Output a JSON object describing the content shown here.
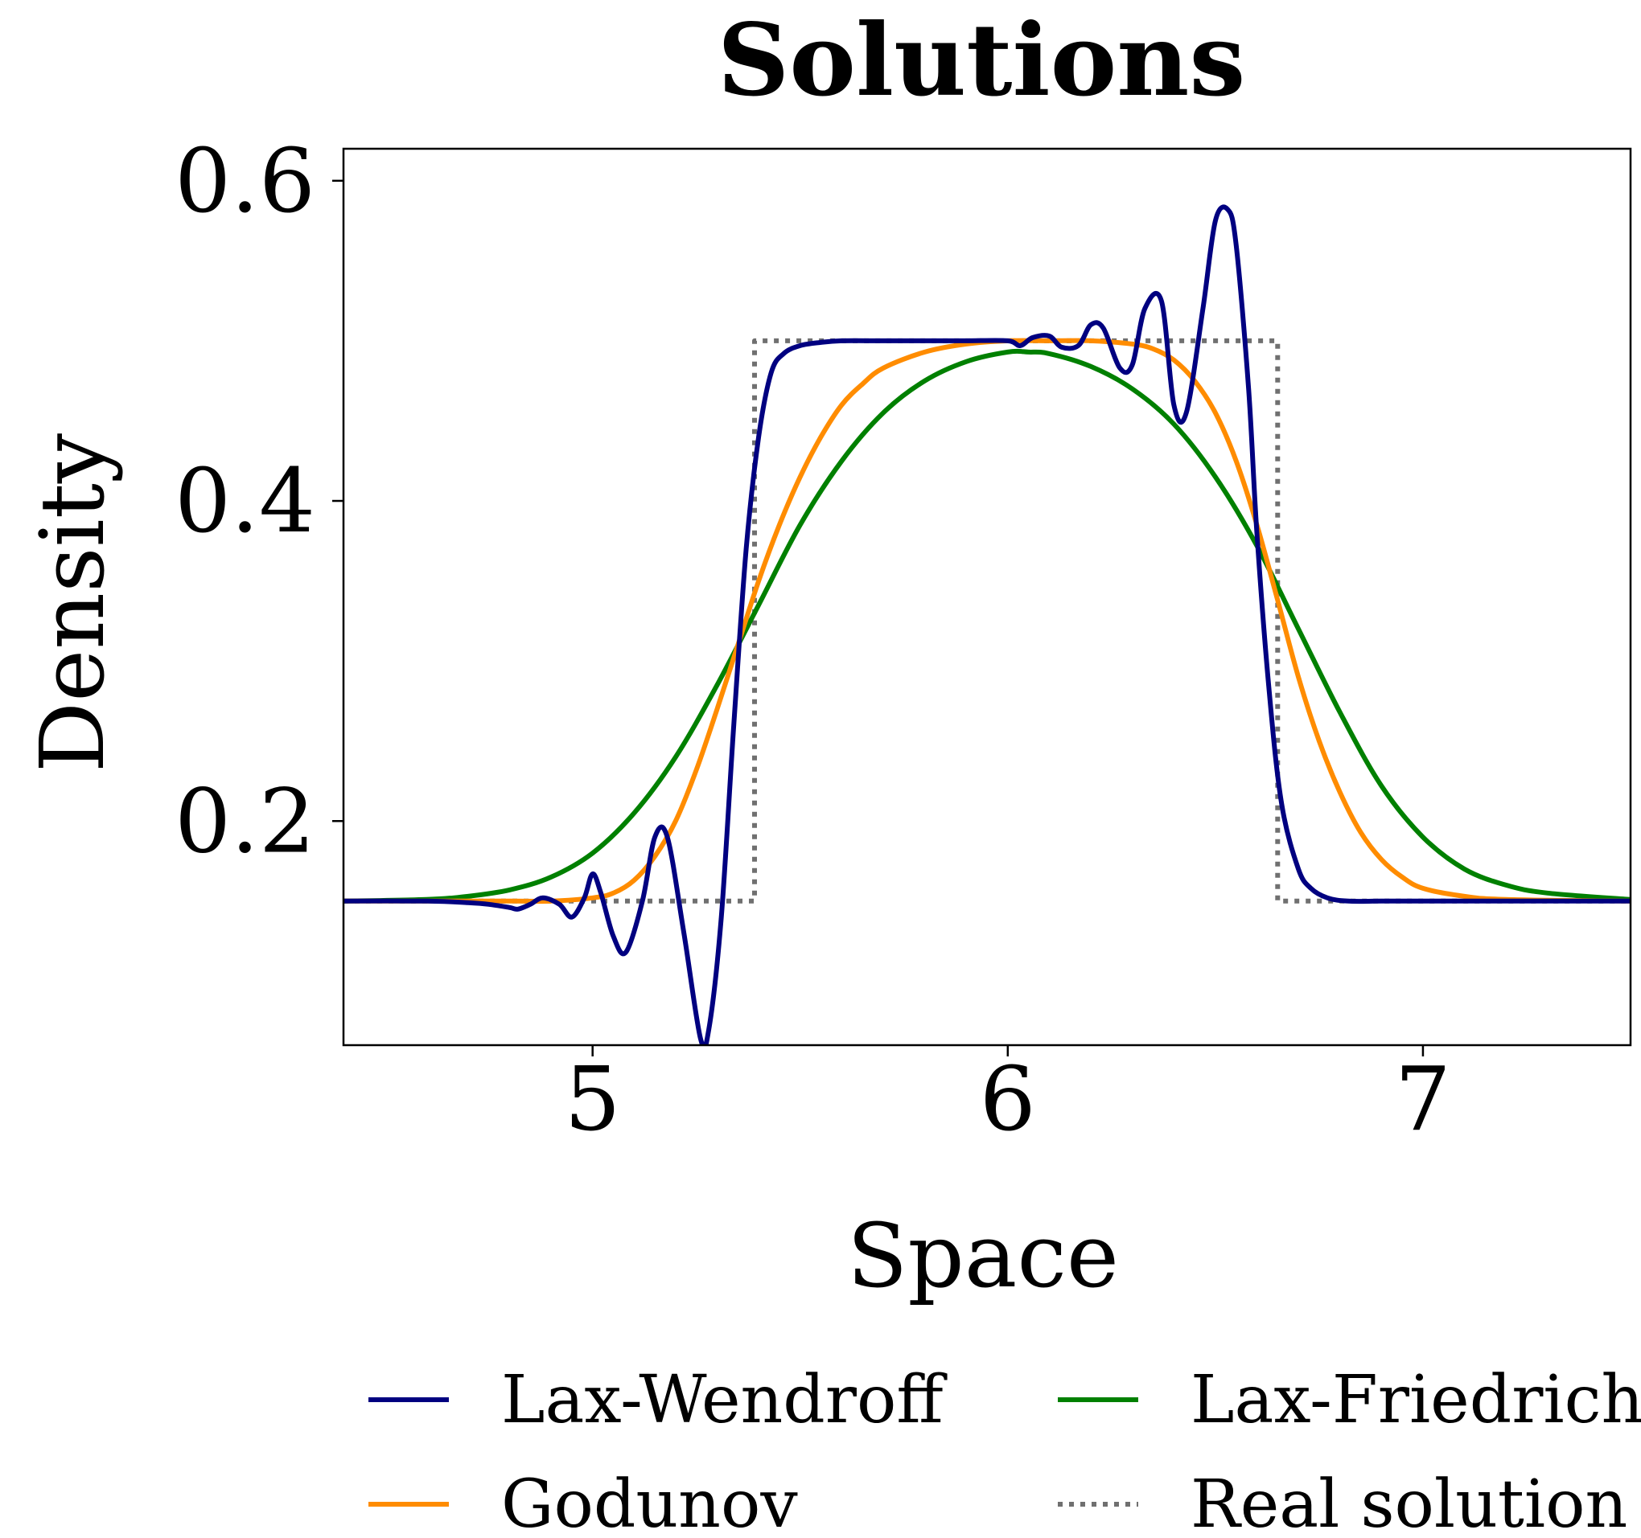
{
  "chart_data": {
    "type": "line",
    "title": "Solutions",
    "xlabel": "Space",
    "ylabel": "Density",
    "xlim": [
      4.4,
      7.5
    ],
    "ylim": [
      0.06,
      0.62
    ],
    "xticks": [
      5,
      6,
      7
    ],
    "xtick_labels": [
      "5",
      "6",
      "7"
    ],
    "yticks": [
      0.2,
      0.4,
      0.6
    ],
    "ytick_labels": [
      "0.2",
      "0.4",
      "0.6"
    ],
    "grid": false,
    "legend_position": "bottom (below plot, 2 columns)",
    "series": [
      {
        "name": "Lax-Wendroff",
        "color": "#000080",
        "style": "solid",
        "x": [
          4.4,
          4.6,
          4.7,
          4.75,
          4.8,
          4.82,
          4.85,
          4.88,
          4.92,
          4.95,
          4.98,
          5.0,
          5.02,
          5.05,
          5.08,
          5.12,
          5.15,
          5.18,
          5.22,
          5.26,
          5.28,
          5.31,
          5.34,
          5.37,
          5.4,
          5.43,
          5.46,
          5.5,
          5.55,
          5.6,
          5.7,
          5.8,
          5.9,
          6.0,
          6.03,
          6.06,
          6.1,
          6.13,
          6.17,
          6.2,
          6.23,
          6.27,
          6.3,
          6.33,
          6.37,
          6.4,
          6.43,
          6.47,
          6.5,
          6.53,
          6.55,
          6.58,
          6.6,
          6.63,
          6.66,
          6.7,
          6.73,
          6.77,
          6.82,
          6.9,
          7.0,
          7.5
        ],
        "y": [
          0.15,
          0.15,
          0.149,
          0.148,
          0.146,
          0.145,
          0.148,
          0.152,
          0.148,
          0.14,
          0.152,
          0.167,
          0.155,
          0.128,
          0.118,
          0.15,
          0.19,
          0.19,
          0.13,
          0.064,
          0.07,
          0.14,
          0.26,
          0.37,
          0.44,
          0.48,
          0.492,
          0.497,
          0.499,
          0.5,
          0.5,
          0.5,
          0.5,
          0.5,
          0.497,
          0.502,
          0.503,
          0.496,
          0.497,
          0.51,
          0.508,
          0.483,
          0.485,
          0.52,
          0.525,
          0.46,
          0.455,
          0.52,
          0.575,
          0.582,
          0.56,
          0.47,
          0.38,
          0.28,
          0.21,
          0.17,
          0.158,
          0.152,
          0.15,
          0.15,
          0.15,
          0.15
        ]
      },
      {
        "name": "Godunov",
        "color": "#FF8C00",
        "style": "solid",
        "x": [
          4.4,
          4.8,
          4.9,
          5.0,
          5.05,
          5.1,
          5.15,
          5.2,
          5.25,
          5.3,
          5.35,
          5.4,
          5.45,
          5.5,
          5.55,
          5.6,
          5.65,
          5.7,
          5.8,
          5.9,
          6.0,
          6.1,
          6.2,
          6.3,
          6.35,
          6.4,
          6.45,
          6.5,
          6.55,
          6.6,
          6.65,
          6.7,
          6.75,
          6.8,
          6.85,
          6.9,
          6.95,
          7.0,
          7.1,
          7.2,
          7.5
        ],
        "y": [
          0.15,
          0.15,
          0.15,
          0.152,
          0.155,
          0.163,
          0.178,
          0.2,
          0.232,
          0.27,
          0.31,
          0.35,
          0.385,
          0.415,
          0.44,
          0.46,
          0.473,
          0.483,
          0.493,
          0.498,
          0.5,
          0.5,
          0.5,
          0.498,
          0.495,
          0.488,
          0.475,
          0.455,
          0.425,
          0.385,
          0.338,
          0.29,
          0.25,
          0.218,
          0.193,
          0.176,
          0.165,
          0.158,
          0.153,
          0.151,
          0.15
        ]
      },
      {
        "name": "Lax-Friedrichs",
        "color": "#008000",
        "style": "solid",
        "x": [
          4.4,
          4.6,
          4.7,
          4.8,
          4.9,
          5.0,
          5.1,
          5.2,
          5.3,
          5.4,
          5.5,
          5.6,
          5.7,
          5.8,
          5.9,
          6.0,
          6.05,
          6.1,
          6.2,
          6.3,
          6.4,
          6.5,
          6.6,
          6.7,
          6.8,
          6.9,
          7.0,
          7.1,
          7.2,
          7.3,
          7.5
        ],
        "y": [
          0.15,
          0.151,
          0.153,
          0.157,
          0.165,
          0.18,
          0.205,
          0.24,
          0.285,
          0.335,
          0.385,
          0.425,
          0.455,
          0.475,
          0.487,
          0.493,
          0.493,
          0.492,
          0.484,
          0.47,
          0.448,
          0.415,
          0.372,
          0.32,
          0.268,
          0.222,
          0.19,
          0.17,
          0.16,
          0.155,
          0.151
        ]
      },
      {
        "name": "Real solution",
        "color": "#707070",
        "style": "dotted",
        "x": [
          4.4,
          5.39,
          5.39,
          6.65,
          6.65,
          7.5
        ],
        "y": [
          0.15,
          0.15,
          0.5,
          0.5,
          0.15,
          0.15
        ]
      }
    ]
  }
}
